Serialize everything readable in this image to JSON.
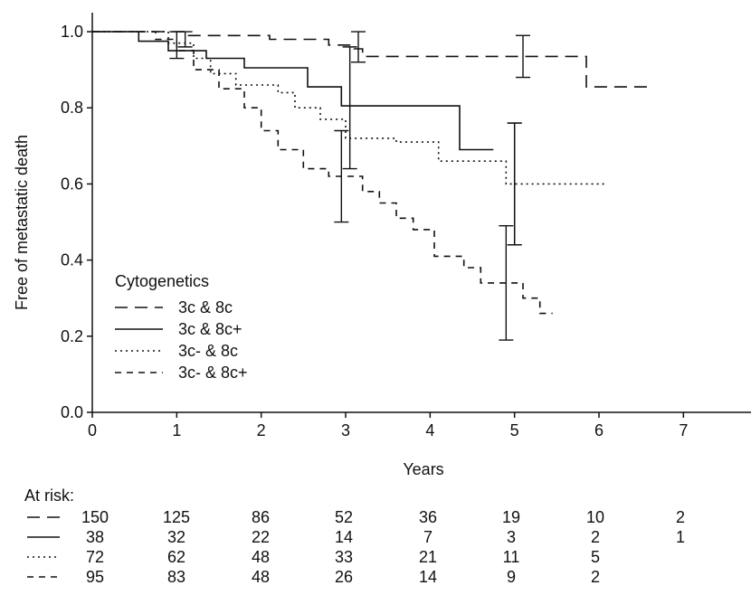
{
  "chart_data": {
    "type": "line",
    "xlabel": "Years",
    "ylabel": "Free of metastatic death",
    "xlim": [
      0,
      7.8
    ],
    "ylim": [
      0,
      1.05
    ],
    "x_ticks": [
      "0",
      "1",
      "2",
      "3",
      "4",
      "5",
      "6",
      "7"
    ],
    "y_ticks": [
      "0.0",
      "0.2",
      "0.4",
      "0.6",
      "0.8",
      "1.0"
    ],
    "legend_title": "Cytogenetics",
    "legend_position": "lower-left",
    "series": [
      {
        "name": "3c & 8c",
        "style": "long-dash",
        "points": [
          [
            0,
            1.0
          ],
          [
            1.1,
            1.0
          ],
          [
            1.1,
            0.99
          ],
          [
            2.1,
            0.99
          ],
          [
            2.1,
            0.98
          ],
          [
            2.8,
            0.98
          ],
          [
            2.8,
            0.965
          ],
          [
            3.1,
            0.965
          ],
          [
            3.1,
            0.955
          ],
          [
            3.2,
            0.955
          ],
          [
            3.2,
            0.935
          ],
          [
            5.85,
            0.935
          ],
          [
            5.85,
            0.855
          ],
          [
            6.65,
            0.855
          ]
        ],
        "error_bars": [
          {
            "x": 1.1,
            "low": 0.96,
            "high": 1.0
          },
          {
            "x": 3.15,
            "low": 0.92,
            "high": 1.0
          },
          {
            "x": 5.1,
            "low": 0.88,
            "high": 0.99
          }
        ]
      },
      {
        "name": "3c & 8c+",
        "style": "solid",
        "points": [
          [
            0,
            1.0
          ],
          [
            0.55,
            1.0
          ],
          [
            0.55,
            0.975
          ],
          [
            0.9,
            0.975
          ],
          [
            0.9,
            0.95
          ],
          [
            1.35,
            0.95
          ],
          [
            1.35,
            0.93
          ],
          [
            1.8,
            0.93
          ],
          [
            1.8,
            0.905
          ],
          [
            2.55,
            0.905
          ],
          [
            2.55,
            0.855
          ],
          [
            2.95,
            0.855
          ],
          [
            2.95,
            0.805
          ],
          [
            4.35,
            0.805
          ],
          [
            4.35,
            0.69
          ],
          [
            4.75,
            0.69
          ]
        ],
        "error_bars": [
          {
            "x": 1.0,
            "low": 0.93,
            "high": 1.0
          },
          {
            "x": 3.05,
            "low": 0.64,
            "high": 0.96
          },
          {
            "x": 5.0,
            "low": 0.44,
            "high": 0.76
          }
        ]
      },
      {
        "name": "3c- & 8c",
        "style": "dotted",
        "points": [
          [
            0,
            1.0
          ],
          [
            0.9,
            1.0
          ],
          [
            0.9,
            0.97
          ],
          [
            1.2,
            0.97
          ],
          [
            1.2,
            0.93
          ],
          [
            1.4,
            0.93
          ],
          [
            1.4,
            0.89
          ],
          [
            1.7,
            0.89
          ],
          [
            1.7,
            0.86
          ],
          [
            2.2,
            0.86
          ],
          [
            2.2,
            0.84
          ],
          [
            2.4,
            0.84
          ],
          [
            2.4,
            0.8
          ],
          [
            2.7,
            0.8
          ],
          [
            2.7,
            0.77
          ],
          [
            3.0,
            0.77
          ],
          [
            3.0,
            0.72
          ],
          [
            3.6,
            0.72
          ],
          [
            3.6,
            0.71
          ],
          [
            4.1,
            0.71
          ],
          [
            4.1,
            0.66
          ],
          [
            4.9,
            0.66
          ],
          [
            4.9,
            0.6
          ],
          [
            6.1,
            0.6
          ]
        ],
        "error_bars": [
          {
            "x": 2.95,
            "low": 0.5,
            "high": 0.74
          },
          {
            "x": 5.0,
            "low": 0.44,
            "high": 0.76
          }
        ]
      },
      {
        "name": "3c- & 8c+",
        "style": "short-dash",
        "points": [
          [
            0,
            1.0
          ],
          [
            0.75,
            1.0
          ],
          [
            0.75,
            0.98
          ],
          [
            1.0,
            0.98
          ],
          [
            1.0,
            0.95
          ],
          [
            1.2,
            0.95
          ],
          [
            1.2,
            0.9
          ],
          [
            1.5,
            0.9
          ],
          [
            1.5,
            0.85
          ],
          [
            1.8,
            0.85
          ],
          [
            1.8,
            0.8
          ],
          [
            2.0,
            0.8
          ],
          [
            2.0,
            0.74
          ],
          [
            2.2,
            0.74
          ],
          [
            2.2,
            0.69
          ],
          [
            2.5,
            0.69
          ],
          [
            2.5,
            0.64
          ],
          [
            2.8,
            0.64
          ],
          [
            2.8,
            0.62
          ],
          [
            3.2,
            0.62
          ],
          [
            3.2,
            0.58
          ],
          [
            3.4,
            0.58
          ],
          [
            3.4,
            0.55
          ],
          [
            3.6,
            0.55
          ],
          [
            3.6,
            0.51
          ],
          [
            3.8,
            0.51
          ],
          [
            3.8,
            0.48
          ],
          [
            4.05,
            0.48
          ],
          [
            4.05,
            0.41
          ],
          [
            4.4,
            0.41
          ],
          [
            4.4,
            0.38
          ],
          [
            4.6,
            0.38
          ],
          [
            4.6,
            0.34
          ],
          [
            5.1,
            0.34
          ],
          [
            5.1,
            0.3
          ],
          [
            5.3,
            0.3
          ],
          [
            5.3,
            0.26
          ],
          [
            5.45,
            0.26
          ]
        ],
        "error_bars": [
          {
            "x": 4.9,
            "low": 0.19,
            "high": 0.49
          }
        ]
      }
    ],
    "at_risk": {
      "label": "At risk:",
      "rows": [
        [
          "150",
          "125",
          "86",
          "52",
          "36",
          "19",
          "10",
          "2"
        ],
        [
          "38",
          "32",
          "22",
          "14",
          "7",
          "3",
          "2",
          "1"
        ],
        [
          "72",
          "62",
          "48",
          "33",
          "21",
          "11",
          "5",
          ""
        ],
        [
          "95",
          "83",
          "48",
          "26",
          "14",
          "9",
          "2",
          ""
        ]
      ]
    }
  }
}
